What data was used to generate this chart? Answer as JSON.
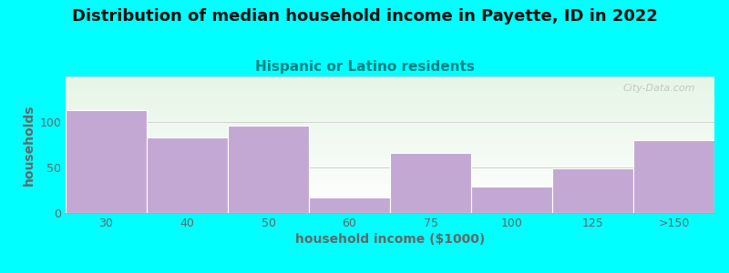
{
  "title": "Distribution of median household income in Payette, ID in 2022",
  "subtitle": "Hispanic or Latino residents",
  "xlabel": "household income ($1000)",
  "ylabel": "households",
  "background_color": "#00FFFF",
  "bar_color": "#C4A8D4",
  "categories": [
    "30",
    "40",
    "50",
    "60",
    "75",
    "100",
    "125",
    ">150"
  ],
  "values": [
    113,
    83,
    96,
    17,
    66,
    29,
    49,
    80
  ],
  "ylim": [
    0,
    150
  ],
  "yticks": [
    0,
    50,
    100
  ],
  "title_fontsize": 13,
  "subtitle_fontsize": 11,
  "subtitle_color": "#008080",
  "axis_label_fontsize": 10,
  "tick_fontsize": 9,
  "tick_color": "#666666",
  "watermark": "City-Data.com"
}
